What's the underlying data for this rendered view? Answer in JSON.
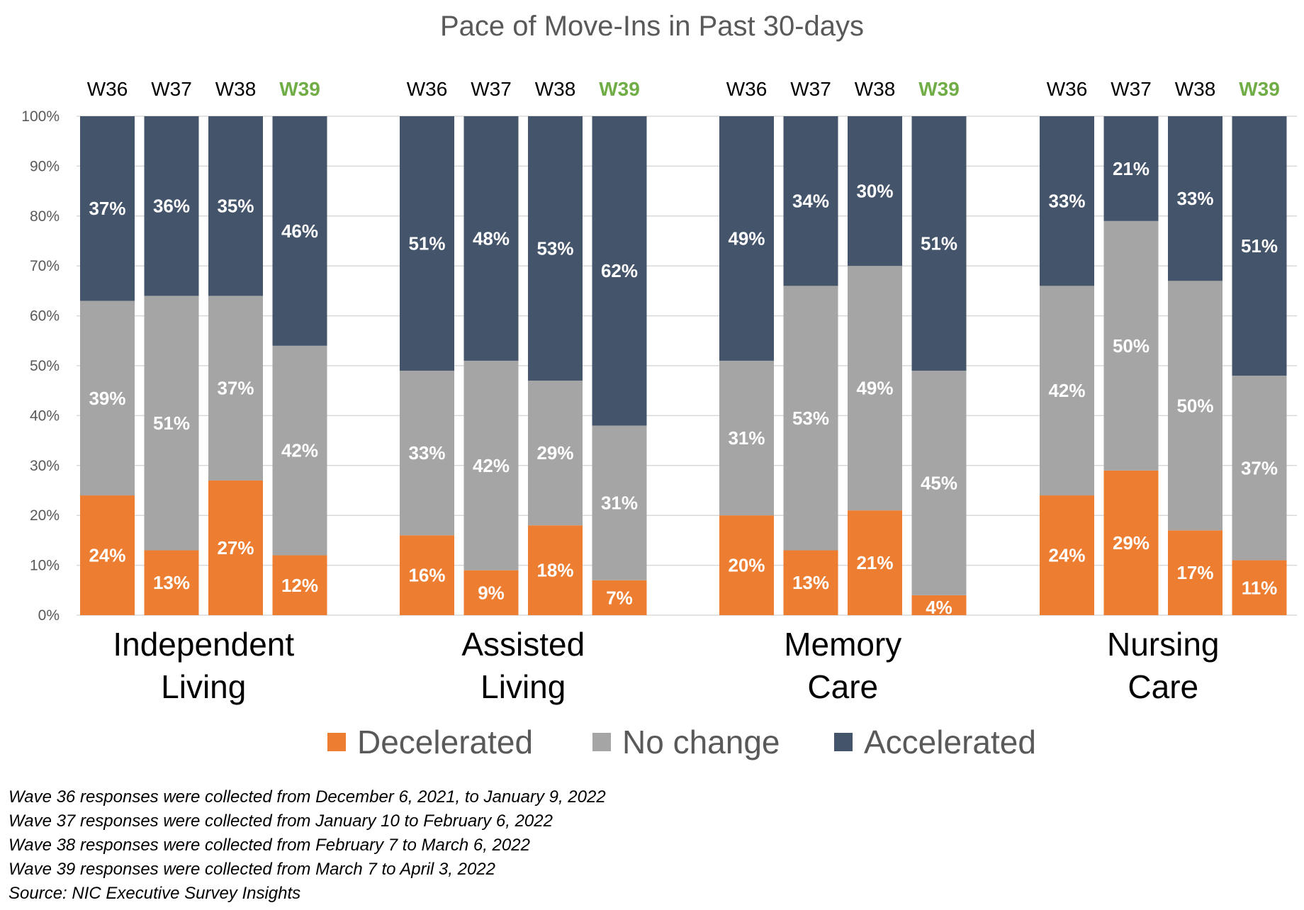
{
  "chart_data": {
    "type": "bar",
    "stacked": true,
    "title": "Pace of Move-Ins in Past 30-days",
    "ylim": [
      0,
      100
    ],
    "y_ticks": [
      "0%",
      "10%",
      "20%",
      "30%",
      "40%",
      "50%",
      "60%",
      "70%",
      "80%",
      "90%",
      "100%"
    ],
    "waves": [
      "W36",
      "W37",
      "W38",
      "W39"
    ],
    "highlight_wave": "W39",
    "highlight_color": "#70ad47",
    "groups": [
      {
        "name_lines": [
          "Independent",
          "Living"
        ],
        "bars": [
          {
            "wave": "W36",
            "values": [
              24,
              39,
              37
            ]
          },
          {
            "wave": "W37",
            "values": [
              13,
              51,
              36
            ]
          },
          {
            "wave": "W38",
            "values": [
              27,
              37,
              35
            ]
          },
          {
            "wave": "W39",
            "values": [
              12,
              42,
              46
            ]
          }
        ]
      },
      {
        "name_lines": [
          "Assisted",
          "Living"
        ],
        "bars": [
          {
            "wave": "W36",
            "values": [
              16,
              33,
              51
            ]
          },
          {
            "wave": "W37",
            "values": [
              9,
              42,
              48
            ]
          },
          {
            "wave": "W38",
            "values": [
              18,
              29,
              53
            ]
          },
          {
            "wave": "W39",
            "values": [
              7,
              31,
              62
            ]
          }
        ]
      },
      {
        "name_lines": [
          "Memory",
          "Care"
        ],
        "bars": [
          {
            "wave": "W36",
            "values": [
              20,
              31,
              49
            ]
          },
          {
            "wave": "W37",
            "values": [
              13,
              53,
              34
            ]
          },
          {
            "wave": "W38",
            "values": [
              21,
              49,
              30
            ]
          },
          {
            "wave": "W39",
            "values": [
              4,
              45,
              51
            ]
          }
        ]
      },
      {
        "name_lines": [
          "Nursing",
          "Care"
        ],
        "bars": [
          {
            "wave": "W36",
            "values": [
              24,
              42,
              33
            ]
          },
          {
            "wave": "W37",
            "values": [
              29,
              50,
              21
            ]
          },
          {
            "wave": "W38",
            "values": [
              17,
              50,
              33
            ]
          },
          {
            "wave": "W39",
            "values": [
              11,
              37,
              51
            ]
          }
        ]
      }
    ],
    "series": [
      {
        "name": "Decelerated",
        "color": "#ed7d31"
      },
      {
        "name": "No change",
        "color": "#a5a5a5"
      },
      {
        "name": "Accelerated",
        "color": "#44546a"
      }
    ],
    "legend_position": "bottom"
  },
  "footnotes": [
    "Wave 36 responses were collected from December 6, 2021, to January 9, 2022",
    "Wave 37 responses were collected from January 10 to February 6, 2022",
    "Wave 38 responses were collected from February 7 to March 6, 2022",
    "Wave 39 responses were collected from March 7 to April 3, 2022",
    "Source: NIC Executive Survey Insights"
  ]
}
